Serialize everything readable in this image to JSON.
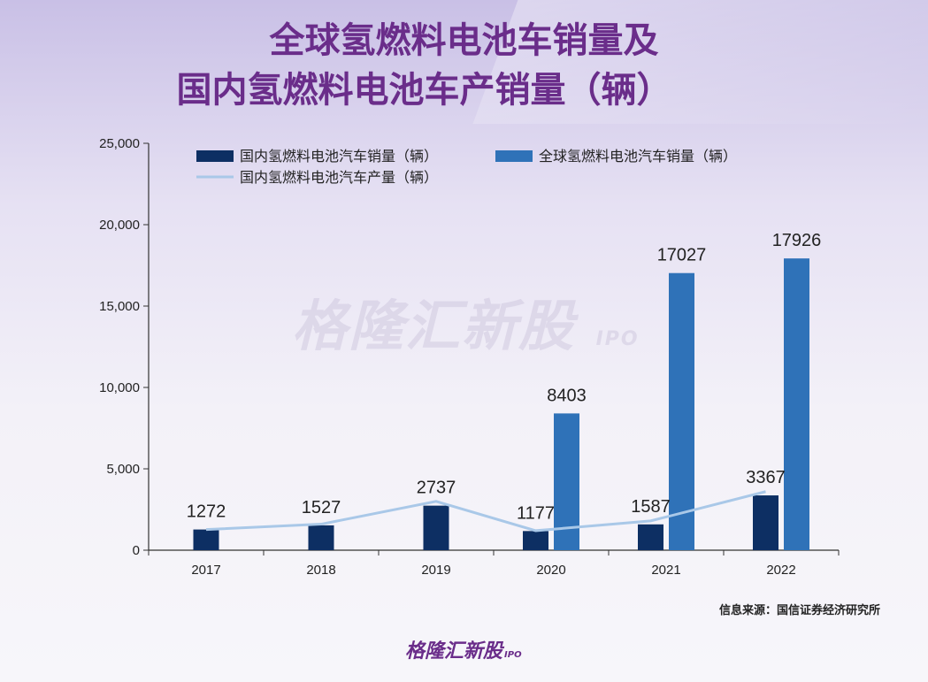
{
  "title": {
    "line1": "全球氢燃料电池车销量及",
    "line2": "国内氢燃料电池车产销量（辆）"
  },
  "watermark": {
    "text": "格隆汇新股",
    "sub": "IPO"
  },
  "source": "信息来源：国信证券经济研究所",
  "logo": {
    "text": "格隆汇新股",
    "sub": "IPO"
  },
  "colors": {
    "title": "#6a2d8a",
    "domestic_sales": "#0d2f63",
    "global_sales": "#2f72b8",
    "domestic_production": "#a9c8e8"
  },
  "chart_data": {
    "type": "bar",
    "categories": [
      "2017",
      "2018",
      "2019",
      "2020",
      "2021",
      "2022"
    ],
    "ylim": [
      0,
      25000
    ],
    "yticks": [
      "0",
      "5,000",
      "10,000",
      "15,000",
      "20,000",
      "25,000"
    ],
    "ytick_values": [
      0,
      5000,
      10000,
      15000,
      20000,
      25000
    ],
    "legend_position": "top",
    "series": [
      {
        "name": "国内氢燃料电池汽车销量（辆）",
        "type": "bar",
        "values": [
          1272,
          1527,
          2737,
          1177,
          1587,
          3367
        ]
      },
      {
        "name": "全球氢燃料电池汽车销量（辆）",
        "type": "bar",
        "values": [
          null,
          null,
          null,
          8403,
          17027,
          17926
        ]
      },
      {
        "name": "国内氢燃料电池汽车产量（辆）",
        "type": "line",
        "values": [
          1272,
          1600,
          3000,
          1200,
          1800,
          3600
        ]
      }
    ],
    "data_labels": {
      "domestic_sales": [
        "1272",
        "1527",
        "2737",
        "1177",
        "1587",
        "3367"
      ],
      "global_sales": [
        null,
        null,
        null,
        "8403",
        "17027",
        "17926"
      ]
    }
  }
}
